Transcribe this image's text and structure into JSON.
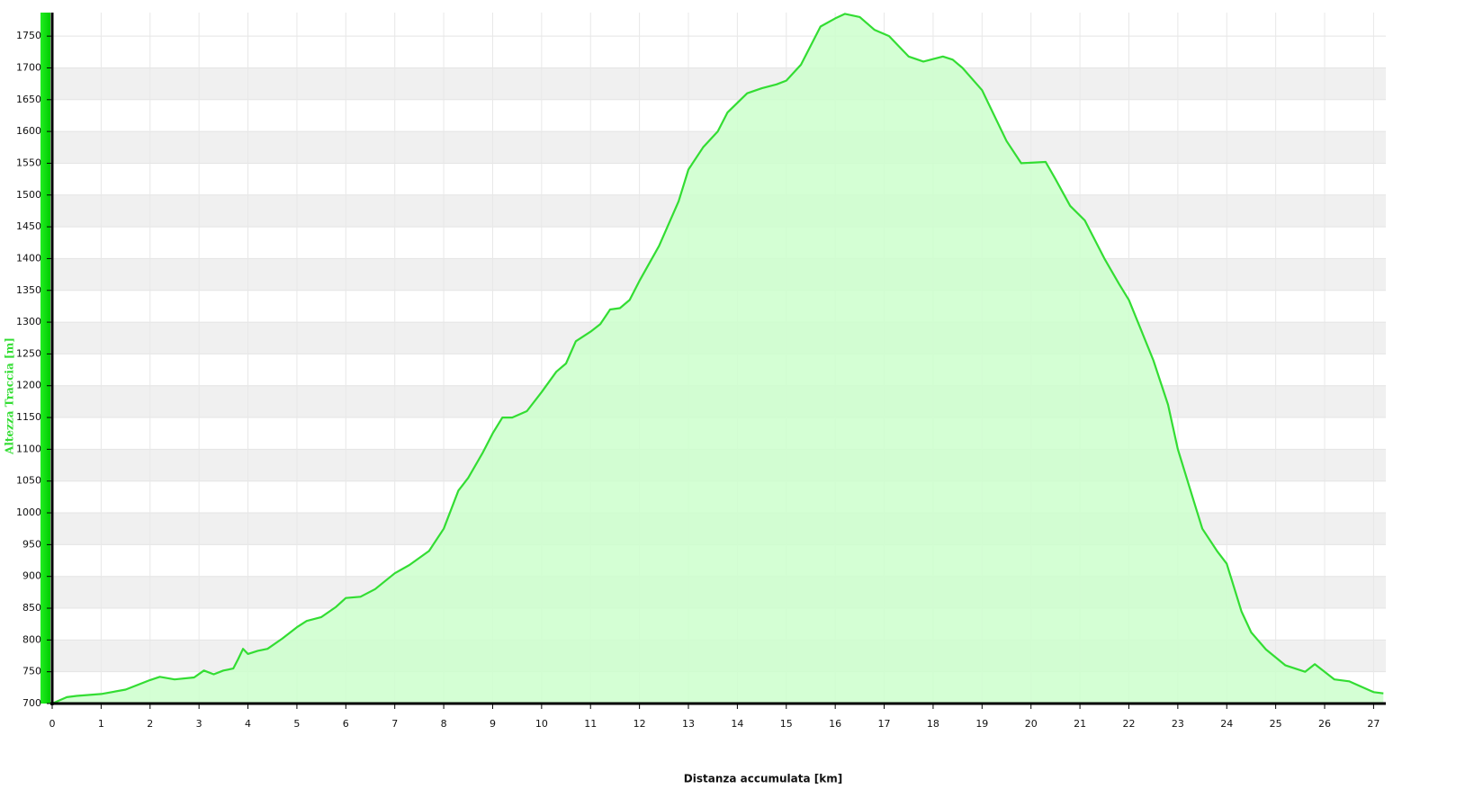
{
  "chart_data": {
    "type": "area",
    "x_label": "Distanza accumulata [km]",
    "y_label": "Altezza Traccia [m]",
    "color": "#33dd33",
    "fill": "#ccffcc",
    "x": [
      0,
      0.3,
      0.5,
      1,
      1.5,
      2,
      2.2,
      2.5,
      2.9,
      3.1,
      3.3,
      3.5,
      3.7,
      3.8,
      3.9,
      4.0,
      4.2,
      4.4,
      4.7,
      5,
      5.2,
      5.5,
      5.8,
      6,
      6.3,
      6.6,
      7,
      7.3,
      7.7,
      8.0,
      8.3,
      8.5,
      8.8,
      9.0,
      9.2,
      9.4,
      9.7,
      10,
      10.3,
      10.5,
      10.7,
      11,
      11.2,
      11.4,
      11.6,
      11.8,
      12,
      12.4,
      12.8,
      13,
      13.3,
      13.6,
      13.8,
      14.2,
      14.5,
      14.8,
      15,
      15.3,
      15.7,
      16.0,
      16.2,
      16.5,
      16.8,
      17.1,
      17.5,
      17.8,
      18.2,
      18.4,
      18.6,
      19,
      19.5,
      19.8,
      20.3,
      20.5,
      20.8,
      21.1,
      21.5,
      21.8,
      22,
      22.5,
      22.8,
      23.0,
      23.3,
      23.5,
      23.8,
      24,
      24.3,
      24.5,
      24.8,
      25.2,
      25.6,
      25.8,
      26,
      26.2,
      26.5,
      27,
      27.2
    ],
    "values": [
      700,
      710,
      712,
      715,
      722,
      737,
      742,
      738,
      741,
      752,
      746,
      752,
      755,
      770,
      786,
      778,
      783,
      786,
      802,
      820,
      830,
      836,
      852,
      866,
      868,
      880,
      905,
      918,
      940,
      975,
      1035,
      1055,
      1095,
      1125,
      1150,
      1150,
      1160,
      1190,
      1222,
      1235,
      1270,
      1285,
      1297,
      1320,
      1322,
      1335,
      1365,
      1420,
      1490,
      1540,
      1575,
      1600,
      1630,
      1660,
      1668,
      1674,
      1680,
      1705,
      1765,
      1778,
      1785,
      1780,
      1760,
      1750,
      1718,
      1710,
      1718,
      1713,
      1700,
      1665,
      1585,
      1550,
      1552,
      1525,
      1483,
      1460,
      1400,
      1360,
      1335,
      1240,
      1170,
      1100,
      1025,
      975,
      940,
      920,
      845,
      812,
      785,
      760,
      750,
      762,
      750,
      738,
      735,
      718,
      716
    ],
    "xlim": [
      0,
      27.25
    ],
    "ylim": [
      700,
      1787
    ],
    "xticks": [
      0,
      1,
      2,
      3,
      4,
      5,
      6,
      7,
      8,
      9,
      10,
      11,
      12,
      13,
      14,
      15,
      16,
      17,
      18,
      19,
      20,
      21,
      22,
      23,
      24,
      25,
      26,
      27
    ],
    "yticks": [
      700,
      750,
      800,
      850,
      900,
      950,
      1000,
      1050,
      1100,
      1150,
      1200,
      1250,
      1300,
      1350,
      1400,
      1450,
      1500,
      1550,
      1600,
      1650,
      1700,
      1750
    ],
    "grid": true
  }
}
